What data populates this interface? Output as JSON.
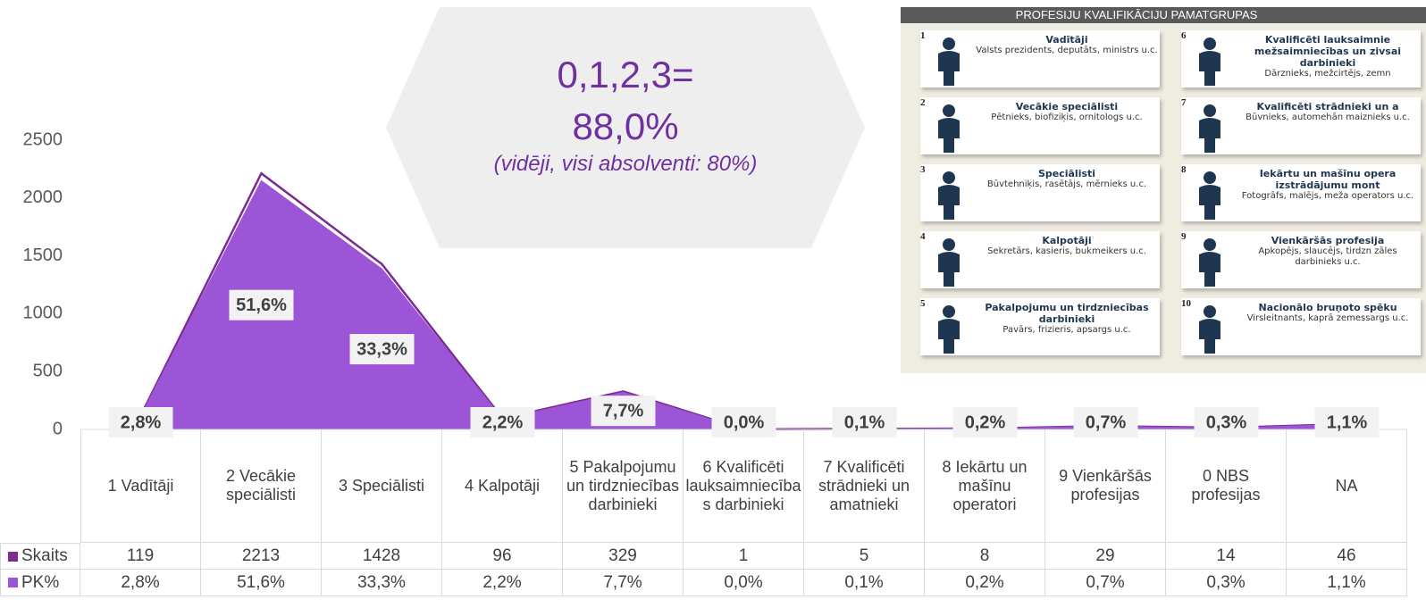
{
  "chart_data": {
    "type": "area",
    "categories": [
      "1 Vadītāji",
      "2 Vecākie speciālisti",
      "3 Speciālisti",
      "4 Kalpotāji",
      "5 Pakalpojumu un tirdzniecības darbinieki",
      "6 Kvalificēti lauksaimniecības darbinieki",
      "7 Kvalificēti strādnieki un amatnieki",
      "8 Iekārtu un mašīnu operatori",
      "9 Vienkāršās profesijas",
      "0 NBS profesijas",
      "NA"
    ],
    "series": [
      {
        "name": "Skaits",
        "color": "#7b2c8f",
        "values": [
          119,
          2213,
          1428,
          96,
          329,
          1,
          5,
          8,
          29,
          14,
          46
        ]
      },
      {
        "name": "PK%",
        "color": "#9b55d6",
        "axis": "y2",
        "values": [
          2.8,
          51.6,
          33.3,
          2.2,
          7.7,
          0.0,
          0.1,
          0.2,
          0.7,
          0.3,
          1.1
        ],
        "value_labels": [
          "2,8%",
          "51,6%",
          "33,3%",
          "2,2%",
          "7,7%",
          "0,0%",
          "0,1%",
          "0,2%",
          "0,7%",
          "0,3%",
          "1,1%"
        ]
      }
    ],
    "ylim": [
      0,
      2500
    ],
    "yticks": [
      0,
      500,
      1000,
      1500,
      2000,
      2500
    ],
    "y2lim": [
      0,
      60
    ],
    "grid": false
  },
  "callout": {
    "line1": "0,1,2,3=",
    "line2": "88,0%",
    "note": "(vidēji, visi absolventi: 80%)"
  },
  "inset": {
    "title": "PROFESIJU KVALIFIKĀCIJU PAMATGRUPAS",
    "cards": [
      {
        "number": "1",
        "title": "Vadītāji",
        "subtitle": "Valsts prezidents, deputāts, ministrs u.c."
      },
      {
        "number": "2",
        "title": "Vecākie speciālisti",
        "subtitle": "Pētnieks, biofiziķis, ornitologs u.c."
      },
      {
        "number": "3",
        "title": "Speciālisti",
        "subtitle": "Būvtehniķis, rasētājs, mērnieks u.c."
      },
      {
        "number": "4",
        "title": "Kalpotāji",
        "subtitle": "Sekretārs, kasieris, bukmeikers u.c."
      },
      {
        "number": "5",
        "title": "Pakalpojumu un tirdzniecības darbinieki",
        "subtitle": "Pavārs, frizieris, apsargs u.c."
      },
      {
        "number": "6",
        "title": "Kvalificēti lauksaimnie mežsaimniecības un zivsai darbinieki",
        "subtitle": "Dārznieks, mežcirtējs, zemn"
      },
      {
        "number": "7",
        "title": "Kvalificēti strādnieki un a",
        "subtitle": "Būvnieks, automehān maiznieks u.c."
      },
      {
        "number": "8",
        "title": "Iekārtu un mašīnu opera izstrādājumu mont",
        "subtitle": "Fotogrāfs, malējs, meža operators u.c."
      },
      {
        "number": "9",
        "title": "Vienkāršās profesija",
        "subtitle": "Apkopējs, slaucējs, tirdzn zāles darbinieks u.c."
      },
      {
        "number": "10",
        "title": "Nacionālo bruņoto spēku",
        "subtitle": "Virsleitnants, kaprā zemessargs u.c."
      }
    ]
  }
}
